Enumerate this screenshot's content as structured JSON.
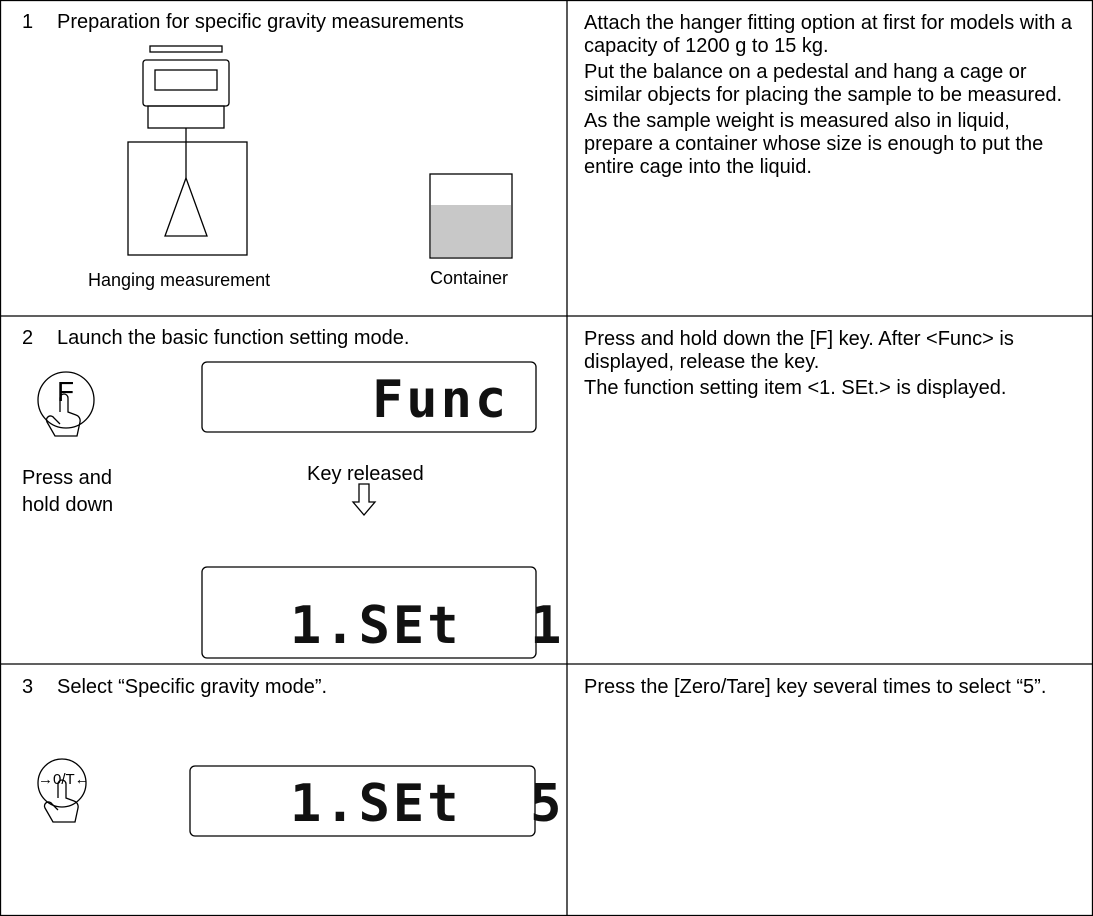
{
  "rows": [
    {
      "step": "1",
      "title": "Preparation for specific gravity measurements",
      "captions": [
        "Hanging measurement",
        "Container"
      ],
      "description": [
        "Attach the hanger fitting option at first for models with a capacity of 1200 g to 15 kg.",
        "Put the balance on a pedestal and hang a cage or similar objects for placing the sample to be measured.",
        "As the sample weight is measured also in liquid, prepare a container whose size is enough to put the entire cage into the liquid."
      ]
    },
    {
      "step": "2",
      "title": "Launch the basic function setting mode.",
      "key": "F",
      "press_label": [
        "Press and",
        "hold down"
      ],
      "release_label": "Key released",
      "displays": [
        "Func",
        "1.SEt  1"
      ],
      "description": [
        "Press and hold down the [F] key. After <Func> is displayed, release the key.",
        "The function setting item <1. SEt.> is displayed."
      ]
    },
    {
      "step": "3",
      "title": "Select “Specific gravity mode”.",
      "key": "→0/T←",
      "displays": [
        "1.SEt  5"
      ],
      "description": [
        "Press the [Zero/Tare] key several times to select “5”."
      ]
    }
  ]
}
